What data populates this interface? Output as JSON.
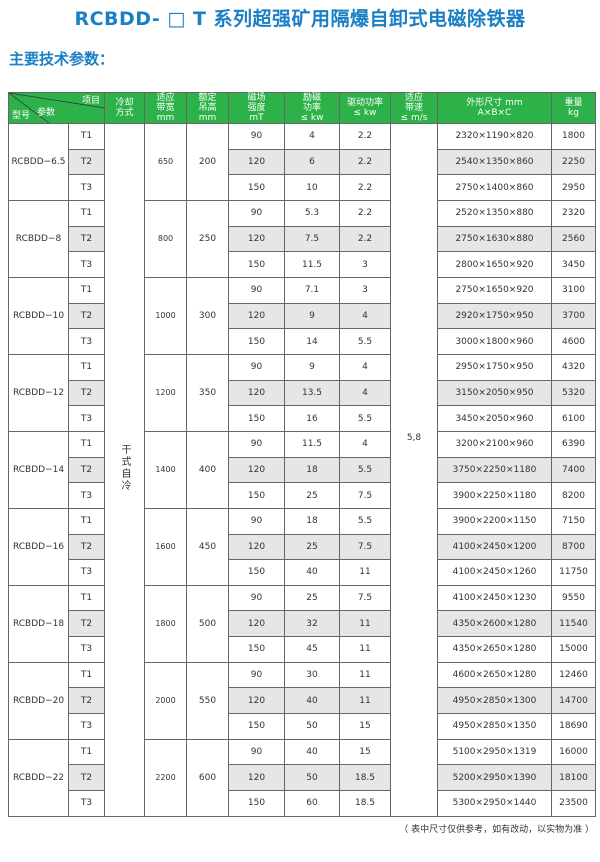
{
  "title": "RCBDD- □ T 系列超强矿用隔爆自卸式电磁除铁器",
  "subtitle": "主要技术参数：",
  "header": {
    "corner_item": "项目",
    "corner_param": "参数",
    "corner_model": "型号",
    "cooling": "冷却方式",
    "belt_width": [
      "适应",
      "带宽",
      "mm"
    ],
    "lift_height": [
      "额定",
      "吊高",
      "mm"
    ],
    "field": [
      "磁场",
      "强度",
      "mT"
    ],
    "excite": [
      "励磁",
      "功率",
      "≤ kw"
    ],
    "drive": [
      "驱动功率",
      "≤ kw"
    ],
    "speed": [
      "适应",
      "带速",
      "≤ m/s"
    ],
    "dims": [
      "外形尺寸 mm",
      "A×B×C"
    ],
    "weight": [
      "重量",
      "kg"
    ]
  },
  "cooling_value": "干式自冷",
  "speed_value": "5,8",
  "groups": [
    {
      "model": "RCBDD−6.5",
      "width": "650",
      "height": "200",
      "rows": [
        [
          "T1",
          "90",
          "4",
          "2.2",
          "2320×1190×820",
          "1800"
        ],
        [
          "T2",
          "120",
          "6",
          "2.2",
          "2540×1350×860",
          "2250"
        ],
        [
          "T3",
          "150",
          "10",
          "2.2",
          "2750×1400×860",
          "2950"
        ]
      ]
    },
    {
      "model": "RCBDD−8",
      "width": "800",
      "height": "250",
      "rows": [
        [
          "T1",
          "90",
          "5.3",
          "2.2",
          "2520×1350×880",
          "2320"
        ],
        [
          "T2",
          "120",
          "7.5",
          "2.2",
          "2750×1630×880",
          "2560"
        ],
        [
          "T3",
          "150",
          "11.5",
          "3",
          "2800×1650×920",
          "3450"
        ]
      ]
    },
    {
      "model": "RCBDD−10",
      "width": "1000",
      "height": "300",
      "rows": [
        [
          "T1",
          "90",
          "7.1",
          "3",
          "2750×1650×920",
          "3100"
        ],
        [
          "T2",
          "120",
          "9",
          "4",
          "2920×1750×950",
          "3700"
        ],
        [
          "T3",
          "150",
          "14",
          "5.5",
          "3000×1800×960",
          "4600"
        ]
      ]
    },
    {
      "model": "RCBDD−12",
      "width": "1200",
      "height": "350",
      "rows": [
        [
          "T1",
          "90",
          "9",
          "4",
          "2950×1750×950",
          "4320"
        ],
        [
          "T2",
          "120",
          "13.5",
          "4",
          "3150×2050×950",
          "5320"
        ],
        [
          "T3",
          "150",
          "16",
          "5.5",
          "3450×2050×960",
          "6100"
        ]
      ]
    },
    {
      "model": "RCBDD−14",
      "width": "1400",
      "height": "400",
      "rows": [
        [
          "T1",
          "90",
          "11.5",
          "4",
          "3200×2100×960",
          "6390"
        ],
        [
          "T2",
          "120",
          "18",
          "5.5",
          "3750×2250×1180",
          "7400"
        ],
        [
          "T3",
          "150",
          "25",
          "7.5",
          "3900×2250×1180",
          "8200"
        ]
      ]
    },
    {
      "model": "RCBDD−16",
      "width": "1600",
      "height": "450",
      "rows": [
        [
          "T1",
          "90",
          "18",
          "5.5",
          "3900×2200×1150",
          "7150"
        ],
        [
          "T2",
          "120",
          "25",
          "7.5",
          "4100×2450×1200",
          "8700"
        ],
        [
          "T3",
          "150",
          "40",
          "11",
          "4100×2450×1260",
          "11750"
        ]
      ]
    },
    {
      "model": "RCBDD−18",
      "width": "1800",
      "height": "500",
      "rows": [
        [
          "T1",
          "90",
          "25",
          "7.5",
          "4100×2450×1230",
          "9550"
        ],
        [
          "T2",
          "120",
          "32",
          "11",
          "4350×2600×1280",
          "11540"
        ],
        [
          "T3",
          "150",
          "45",
          "11",
          "4350×2650×1280",
          "15000"
        ]
      ]
    },
    {
      "model": "RCBDD−20",
      "width": "2000",
      "height": "550",
      "rows": [
        [
          "T1",
          "90",
          "30",
          "11",
          "4600×2650×1280",
          "12460"
        ],
        [
          "T2",
          "120",
          "40",
          "11",
          "4950×2850×1300",
          "14700"
        ],
        [
          "T3",
          "150",
          "50",
          "15",
          "4950×2850×1350",
          "18690"
        ]
      ]
    },
    {
      "model": "RCBDD−22",
      "width": "2200",
      "height": "600",
      "rows": [
        [
          "T1",
          "90",
          "40",
          "15",
          "5100×2950×1319",
          "16000"
        ],
        [
          "T2",
          "120",
          "50",
          "18.5",
          "5200×2950×1390",
          "18100"
        ],
        [
          "T3",
          "150",
          "60",
          "18.5",
          "5300×2950×1440",
          "23500"
        ]
      ]
    }
  ],
  "note": "（ 表中尺寸仅供参考，如有改动，以实物为准 ）",
  "colors": {
    "title": "#1a7fc4",
    "header_bg": "#2db24a",
    "shade": "#e6e6e6"
  }
}
